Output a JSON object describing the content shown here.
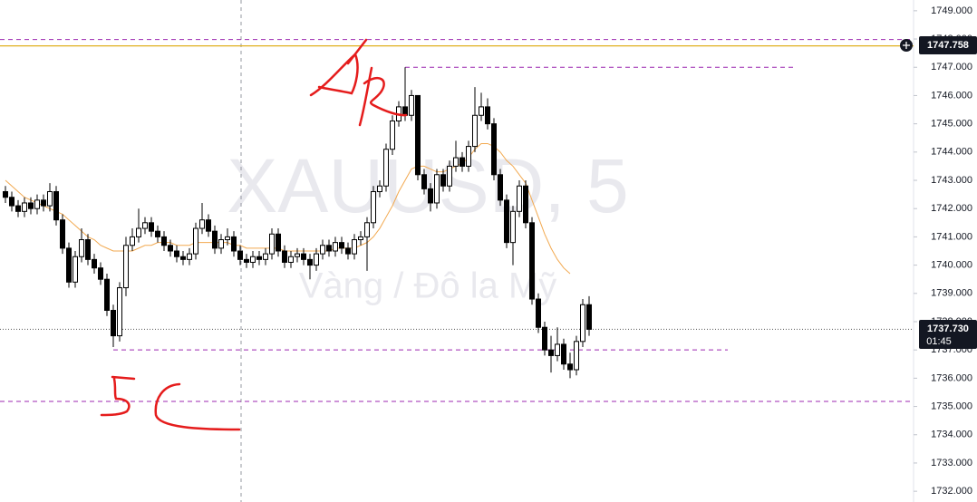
{
  "chart_data": {
    "type": "candlestick",
    "title": "XAUUSD, 5",
    "subtitle": "Vàng / Đô la Mỹ",
    "ylim": [
      1731.62,
      1749.38
    ],
    "yticks": [
      {
        "value": 1732,
        "label": "1732.000"
      },
      {
        "value": 1733,
        "label": "1733.000"
      },
      {
        "value": 1734,
        "label": "1734.000"
      },
      {
        "value": 1735,
        "label": "1735.000"
      },
      {
        "value": 1736,
        "label": "1736.000"
      },
      {
        "value": 1737,
        "label": "1737.000"
      },
      {
        "value": 1738,
        "label": "1738.000"
      },
      {
        "value": 1739,
        "label": "1739.000"
      },
      {
        "value": 1740,
        "label": "1740.000"
      },
      {
        "value": 1741,
        "label": "1741.000"
      },
      {
        "value": 1742,
        "label": "1742.000"
      },
      {
        "value": 1743,
        "label": "1743.000"
      },
      {
        "value": 1744,
        "label": "1744.000"
      },
      {
        "value": 1745,
        "label": "1745.000"
      },
      {
        "value": 1746,
        "label": "1746.000"
      },
      {
        "value": 1747,
        "label": "1747.000"
      },
      {
        "value": 1748,
        "label": "1748.000"
      },
      {
        "value": 1749,
        "label": "1749.000"
      }
    ],
    "series": [
      {
        "name": "XAUUSD",
        "up_color": "#ffffff",
        "down_color": "#000000",
        "open": [
          1742.6,
          1742.4,
          1742.1,
          1741.9,
          1742.2,
          1742.0,
          1742.3,
          1742.1,
          1742.6,
          1741.6,
          1740.6,
          1739.4,
          1740.3,
          1740.9,
          1740.2,
          1739.9,
          1739.5,
          1738.4,
          1737.5,
          1739.2,
          1740.7,
          1741.0,
          1741.3,
          1741.5,
          1741.2,
          1741.0,
          1740.7,
          1740.5,
          1740.3,
          1740.2,
          1740.4,
          1741.3,
          1741.6,
          1741.2,
          1740.6,
          1740.9,
          1741.0,
          1740.5,
          1740.2,
          1740.1,
          1740.3,
          1740.2,
          1740.4,
          1741.1,
          1740.5,
          1740.1,
          1740.3,
          1740.4,
          1740.2,
          1740.0,
          1740.4,
          1740.7,
          1740.5,
          1740.8,
          1740.6,
          1740.4,
          1740.9,
          1741.0,
          1741.5,
          1742.6,
          1742.8,
          1744.1,
          1745.1,
          1745.6,
          1745.3,
          1746.0,
          1743.2,
          1742.7,
          1742.2,
          1743.2,
          1742.8,
          1743.5,
          1743.8,
          1743.5,
          1744.2,
          1745.3,
          1745.6,
          1745.0,
          1743.2,
          1742.3,
          1740.8,
          1741.9,
          1742.8,
          1741.5,
          1738.8,
          1737.8,
          1737.0,
          1736.8,
          1737.2,
          1736.5,
          1736.3,
          1737.3,
          1738.6
        ],
        "high": [
          1742.8,
          1742.6,
          1742.3,
          1742.4,
          1742.4,
          1742.5,
          1742.5,
          1742.9,
          1742.8,
          1741.8,
          1740.8,
          1740.5,
          1741.3,
          1741.1,
          1740.4,
          1740.1,
          1739.7,
          1738.6,
          1739.4,
          1741.0,
          1741.3,
          1742.0,
          1741.7,
          1741.7,
          1741.4,
          1741.2,
          1740.9,
          1740.7,
          1740.5,
          1740.6,
          1741.5,
          1742.2,
          1741.8,
          1741.4,
          1741.1,
          1741.3,
          1741.2,
          1740.7,
          1740.4,
          1740.5,
          1740.5,
          1740.6,
          1741.3,
          1741.3,
          1740.7,
          1740.5,
          1740.6,
          1740.6,
          1740.4,
          1740.6,
          1740.9,
          1740.9,
          1741.0,
          1741.0,
          1740.8,
          1741.1,
          1741.2,
          1741.7,
          1742.8,
          1743.0,
          1744.3,
          1745.3,
          1745.8,
          1747.0,
          1746.2,
          1746.0,
          1743.4,
          1742.9,
          1743.4,
          1743.4,
          1743.7,
          1744.4,
          1744.0,
          1744.4,
          1746.3,
          1746.1,
          1745.9,
          1745.2,
          1743.4,
          1742.5,
          1742.1,
          1743.0,
          1743.0,
          1741.7,
          1739.0,
          1738.0,
          1737.5,
          1737.8,
          1737.4,
          1736.9,
          1737.5,
          1738.8,
          1738.9
        ],
        "low": [
          1742.2,
          1741.9,
          1741.7,
          1741.7,
          1741.8,
          1741.8,
          1741.9,
          1741.9,
          1741.4,
          1740.4,
          1739.2,
          1739.2,
          1740.1,
          1740.0,
          1739.7,
          1739.3,
          1738.2,
          1737.1,
          1737.3,
          1738.9,
          1740.5,
          1740.8,
          1741.1,
          1741.0,
          1740.8,
          1740.5,
          1740.3,
          1740.1,
          1740.0,
          1740.0,
          1740.2,
          1741.1,
          1741.0,
          1740.4,
          1740.4,
          1740.7,
          1740.3,
          1740.0,
          1739.9,
          1739.9,
          1740.0,
          1740.0,
          1740.2,
          1740.3,
          1739.9,
          1739.9,
          1740.1,
          1740.0,
          1739.5,
          1739.8,
          1740.2,
          1740.3,
          1740.3,
          1740.4,
          1740.2,
          1740.2,
          1740.7,
          1739.8,
          1741.3,
          1742.4,
          1742.6,
          1743.9,
          1744.9,
          1745.1,
          1745.1,
          1743.0,
          1742.5,
          1741.9,
          1742.0,
          1742.6,
          1742.6,
          1743.3,
          1743.3,
          1743.3,
          1744.0,
          1745.1,
          1744.8,
          1743.0,
          1742.1,
          1740.6,
          1740.0,
          1741.7,
          1741.3,
          1738.6,
          1737.6,
          1736.8,
          1736.2,
          1736.6,
          1736.3,
          1736.0,
          1736.1,
          1737.1,
          1737.5
        ],
        "close": [
          1742.4,
          1742.1,
          1741.9,
          1742.2,
          1742.0,
          1742.3,
          1742.1,
          1742.6,
          1741.6,
          1740.6,
          1739.4,
          1740.3,
          1740.9,
          1740.2,
          1739.9,
          1739.5,
          1738.4,
          1737.5,
          1739.2,
          1740.7,
          1741.0,
          1741.3,
          1741.5,
          1741.2,
          1741.0,
          1740.7,
          1740.5,
          1740.3,
          1740.2,
          1740.4,
          1741.3,
          1741.6,
          1741.2,
          1740.6,
          1740.9,
          1741.0,
          1740.5,
          1740.2,
          1740.1,
          1740.3,
          1740.2,
          1740.4,
          1741.1,
          1740.5,
          1740.1,
          1740.3,
          1740.4,
          1740.2,
          1740.0,
          1740.4,
          1740.7,
          1740.5,
          1740.8,
          1740.6,
          1740.4,
          1740.9,
          1741.0,
          1741.5,
          1742.6,
          1742.8,
          1744.1,
          1745.1,
          1745.6,
          1745.3,
          1746.0,
          1743.2,
          1742.7,
          1742.2,
          1743.2,
          1742.8,
          1743.5,
          1743.8,
          1743.5,
          1744.2,
          1745.3,
          1745.6,
          1745.0,
          1743.2,
          1742.3,
          1740.8,
          1741.9,
          1742.8,
          1741.5,
          1738.8,
          1737.8,
          1737.0,
          1736.8,
          1737.2,
          1736.5,
          1736.3,
          1737.3,
          1738.6,
          1737.73
        ]
      },
      {
        "name": "MA",
        "color": "#f2a950",
        "values": [
          1743.0,
          1742.8,
          1742.6,
          1742.4,
          1742.3,
          1742.2,
          1742.1,
          1742.0,
          1741.9,
          1741.8,
          1741.6,
          1741.4,
          1741.2,
          1741.0,
          1740.9,
          1740.7,
          1740.6,
          1740.5,
          1740.5,
          1740.5,
          1740.5,
          1740.6,
          1740.7,
          1740.7,
          1740.8,
          1740.8,
          1740.8,
          1740.7,
          1740.7,
          1740.7,
          1740.8,
          1740.8,
          1740.8,
          1740.8,
          1740.8,
          1740.8,
          1740.7,
          1740.7,
          1740.6,
          1740.6,
          1740.6,
          1740.6,
          1740.6,
          1740.6,
          1740.5,
          1740.5,
          1740.5,
          1740.5,
          1740.5,
          1740.5,
          1740.5,
          1740.5,
          1740.6,
          1740.6,
          1740.6,
          1740.6,
          1740.7,
          1740.8,
          1741.0,
          1741.3,
          1741.7,
          1742.1,
          1742.6,
          1743.0,
          1743.4,
          1743.5,
          1743.5,
          1743.4,
          1743.3,
          1743.3,
          1743.4,
          1743.5,
          1743.6,
          1743.8,
          1744.1,
          1744.3,
          1744.3,
          1744.2,
          1744.0,
          1743.7,
          1743.5,
          1743.2,
          1742.9,
          1742.3,
          1741.7,
          1741.1,
          1740.6,
          1740.2,
          1739.9,
          1739.7,
          null,
          null,
          null
        ]
      }
    ],
    "levels": [
      {
        "value": 1747.98,
        "color": "#9c27b0",
        "style": "dashed"
      },
      {
        "value": 1747.758,
        "color": "#e0b020",
        "style": "solid"
      },
      {
        "value": 1747.0,
        "color": "#9c27b0",
        "style": "dashed",
        "from": 63
      },
      {
        "value": 1737.73,
        "color": "#555555",
        "style": "dotted"
      },
      {
        "value": 1737.0,
        "color": "#9c27b0",
        "style": "dashed",
        "from": 17
      },
      {
        "value": 1735.18,
        "color": "#9c27b0",
        "style": "dashed"
      }
    ],
    "alert_price": {
      "value": 1747.758,
      "label": "1747.758"
    },
    "last_price": {
      "value": 1737.73,
      "label": "1737.730"
    },
    "countdown": "01:45"
  }
}
